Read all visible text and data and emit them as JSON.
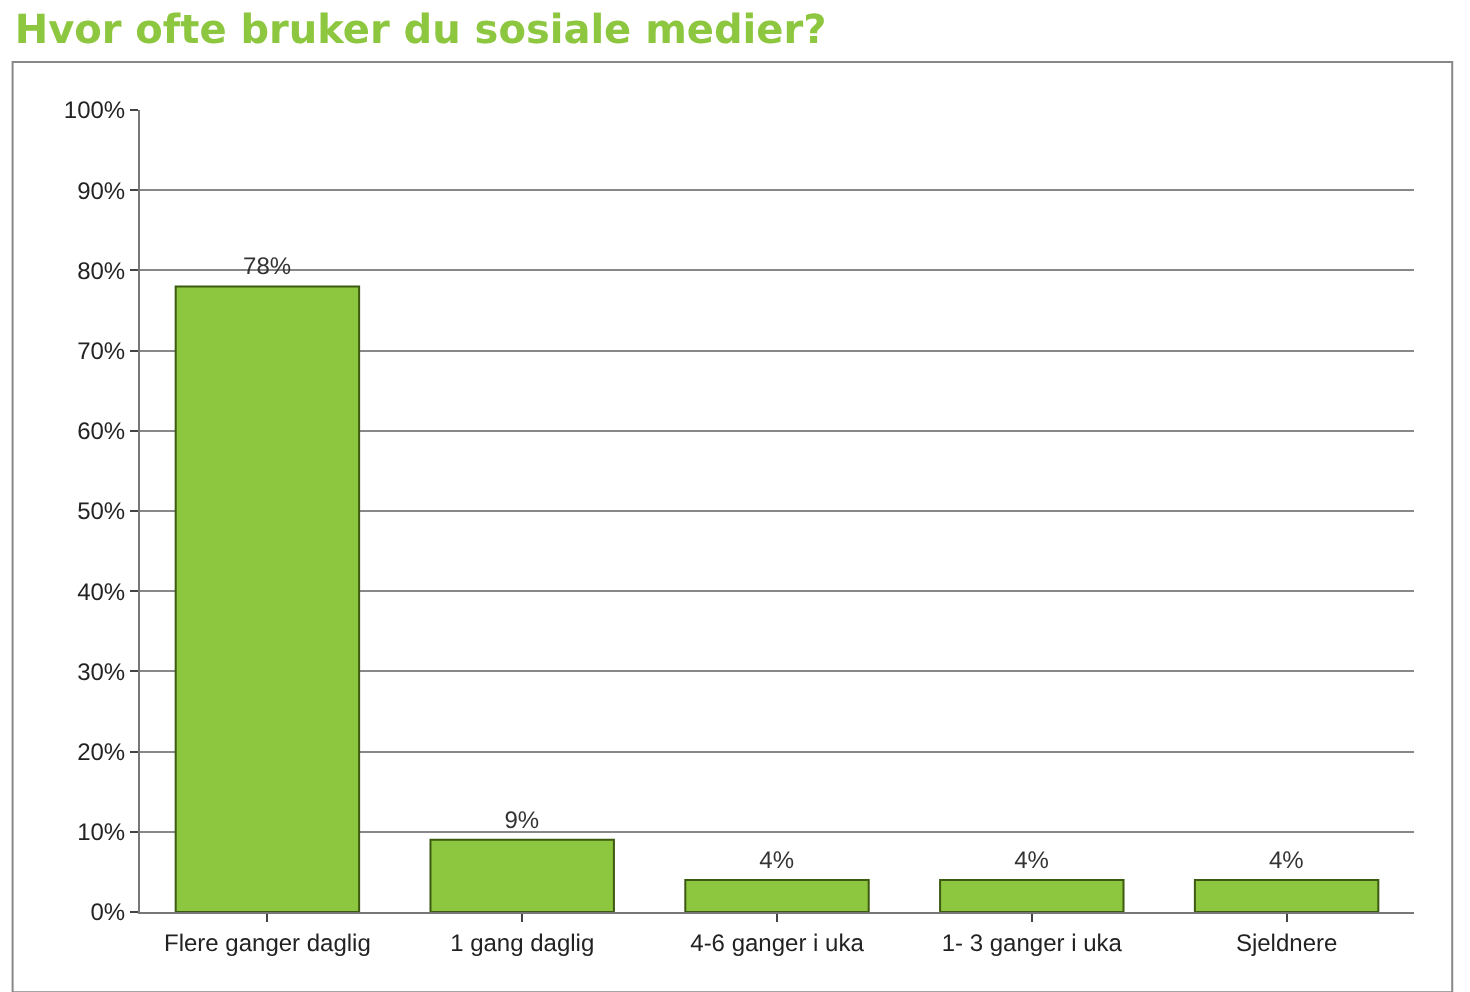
{
  "chart_data": {
    "type": "bar",
    "title": "Hvor ofte bruker du sosiale medier?",
    "categories": [
      "Flere ganger daglig",
      "1 gang daglig",
      "4-6 ganger i uka",
      "1- 3 ganger i uka",
      "Sjeldnere"
    ],
    "values": [
      78,
      9,
      4,
      4,
      4
    ],
    "value_labels": [
      "78%",
      "9%",
      "4%",
      "4%",
      "4%"
    ],
    "color": "#8dc63f",
    "ylim": [
      0,
      100
    ],
    "yticks": [
      {
        "value": 0,
        "label": "0%"
      },
      {
        "value": 10,
        "label": "10%"
      },
      {
        "value": 20,
        "label": "20%"
      },
      {
        "value": 30,
        "label": "30%"
      },
      {
        "value": 40,
        "label": "40%"
      },
      {
        "value": 50,
        "label": "50%"
      },
      {
        "value": 60,
        "label": "60%"
      },
      {
        "value": 70,
        "label": "70%"
      },
      {
        "value": 80,
        "label": "80%"
      },
      {
        "value": 90,
        "label": "90%"
      },
      {
        "value": 100,
        "label": "100%"
      }
    ],
    "grid": "y"
  }
}
